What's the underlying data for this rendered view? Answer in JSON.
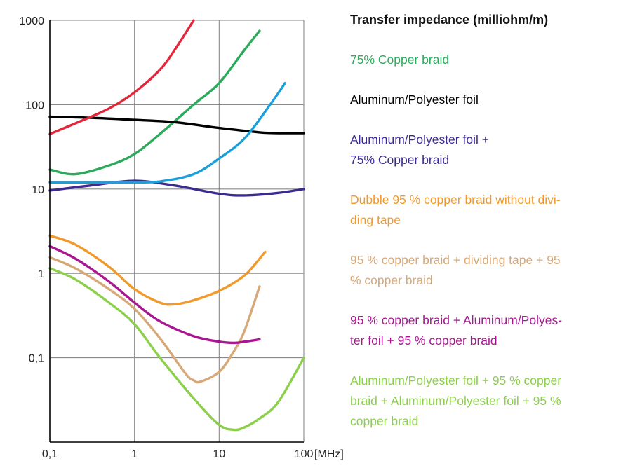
{
  "chart_data": {
    "type": "line",
    "title": "",
    "legend_title": "Transfer impedance (milliohm/m)",
    "x_scale": "log",
    "y_scale": "log",
    "xlim": [
      0.1,
      100
    ],
    "ylim": [
      0.01,
      1000
    ],
    "x_unit": "[MHz]",
    "x_ticks": [
      {
        "value": 0.1,
        "label": "0,1"
      },
      {
        "value": 1,
        "label": "1"
      },
      {
        "value": 10,
        "label": "10"
      },
      {
        "value": 100,
        "label": "100"
      }
    ],
    "y_ticks": [
      {
        "value": 1000,
        "label": "1000"
      },
      {
        "value": 100,
        "label": "100"
      },
      {
        "value": 10,
        "label": "10"
      },
      {
        "value": 1,
        "label": "1"
      },
      {
        "value": 0.1,
        "label": "0,1"
      }
    ],
    "grid": true,
    "legend_position": "right",
    "series": [
      {
        "label": "75% Copper braid",
        "color": "#2aaa5a",
        "x": [
          0.1,
          0.2,
          0.5,
          1,
          2,
          5,
          10,
          20,
          30
        ],
        "y": [
          17,
          15,
          19,
          26,
          45,
          100,
          180,
          450,
          750
        ]
      },
      {
        "label": "Aluminum/Polyester foil",
        "color": "#000000",
        "x": [
          0.1,
          0.3,
          1,
          3,
          10,
          30,
          50,
          100
        ],
        "y": [
          72,
          70,
          66,
          62,
          53,
          47,
          46,
          46
        ]
      },
      {
        "label": "Aluminum/Polyester foil +\n75% Copper braid",
        "color": "#3d2a8f",
        "x": [
          0.1,
          0.3,
          1,
          3,
          10,
          20,
          50,
          100
        ],
        "y": [
          9.6,
          11,
          12.5,
          11,
          8.8,
          8.4,
          9,
          10
        ]
      },
      {
        "label": "Dubble 95 % copper braid without divi-\nding tape",
        "color": "#f19a2b",
        "x": [
          0.1,
          0.2,
          0.5,
          1,
          2,
          3,
          5,
          10,
          20,
          35
        ],
        "y": [
          2.8,
          2.2,
          1.2,
          0.65,
          0.45,
          0.43,
          0.48,
          0.62,
          0.95,
          1.8
        ]
      },
      {
        "label": "95 % copper braid + dividing tape + 95\n% copper braid",
        "color": "#d7a878",
        "x": [
          0.1,
          0.2,
          0.5,
          1,
          2,
          4,
          5,
          6,
          10,
          15,
          20,
          30
        ],
        "y": [
          1.55,
          1.15,
          0.65,
          0.38,
          0.17,
          0.065,
          0.054,
          0.052,
          0.068,
          0.12,
          0.21,
          0.7
        ]
      },
      {
        "label": "95 % copper braid + Aluminum/Polyes-\nter foil + 95 % copper braid",
        "color": "#a81790",
        "x": [
          0.1,
          0.2,
          0.5,
          1,
          2,
          5,
          10,
          15,
          20,
          30
        ],
        "y": [
          2.1,
          1.5,
          0.8,
          0.45,
          0.27,
          0.18,
          0.155,
          0.15,
          0.155,
          0.165
        ]
      },
      {
        "label": "Aluminum/Polyester foil + 95 % copper\nbraid + Aluminum/Polyester foil + 95 %\ncopper braid",
        "color": "#8ccf4a",
        "x": [
          0.1,
          0.2,
          0.5,
          1,
          2,
          5,
          10,
          15,
          20,
          30,
          50,
          100
        ],
        "y": [
          1.15,
          0.85,
          0.45,
          0.25,
          0.1,
          0.033,
          0.016,
          0.014,
          0.015,
          0.019,
          0.03,
          0.1
        ]
      },
      {
        "label": "",
        "color": "#e5263a",
        "x": [
          0.1,
          0.2,
          0.5,
          1,
          2,
          3,
          5
        ],
        "y": [
          45,
          60,
          90,
          140,
          260,
          450,
          1000
        ]
      },
      {
        "label": "",
        "color": "#1a9fdb",
        "x": [
          0.1,
          0.3,
          1,
          2,
          5,
          10,
          20,
          40,
          60
        ],
        "y": [
          12,
          12,
          12,
          12.3,
          15,
          23,
          40,
          100,
          180
        ]
      }
    ]
  }
}
